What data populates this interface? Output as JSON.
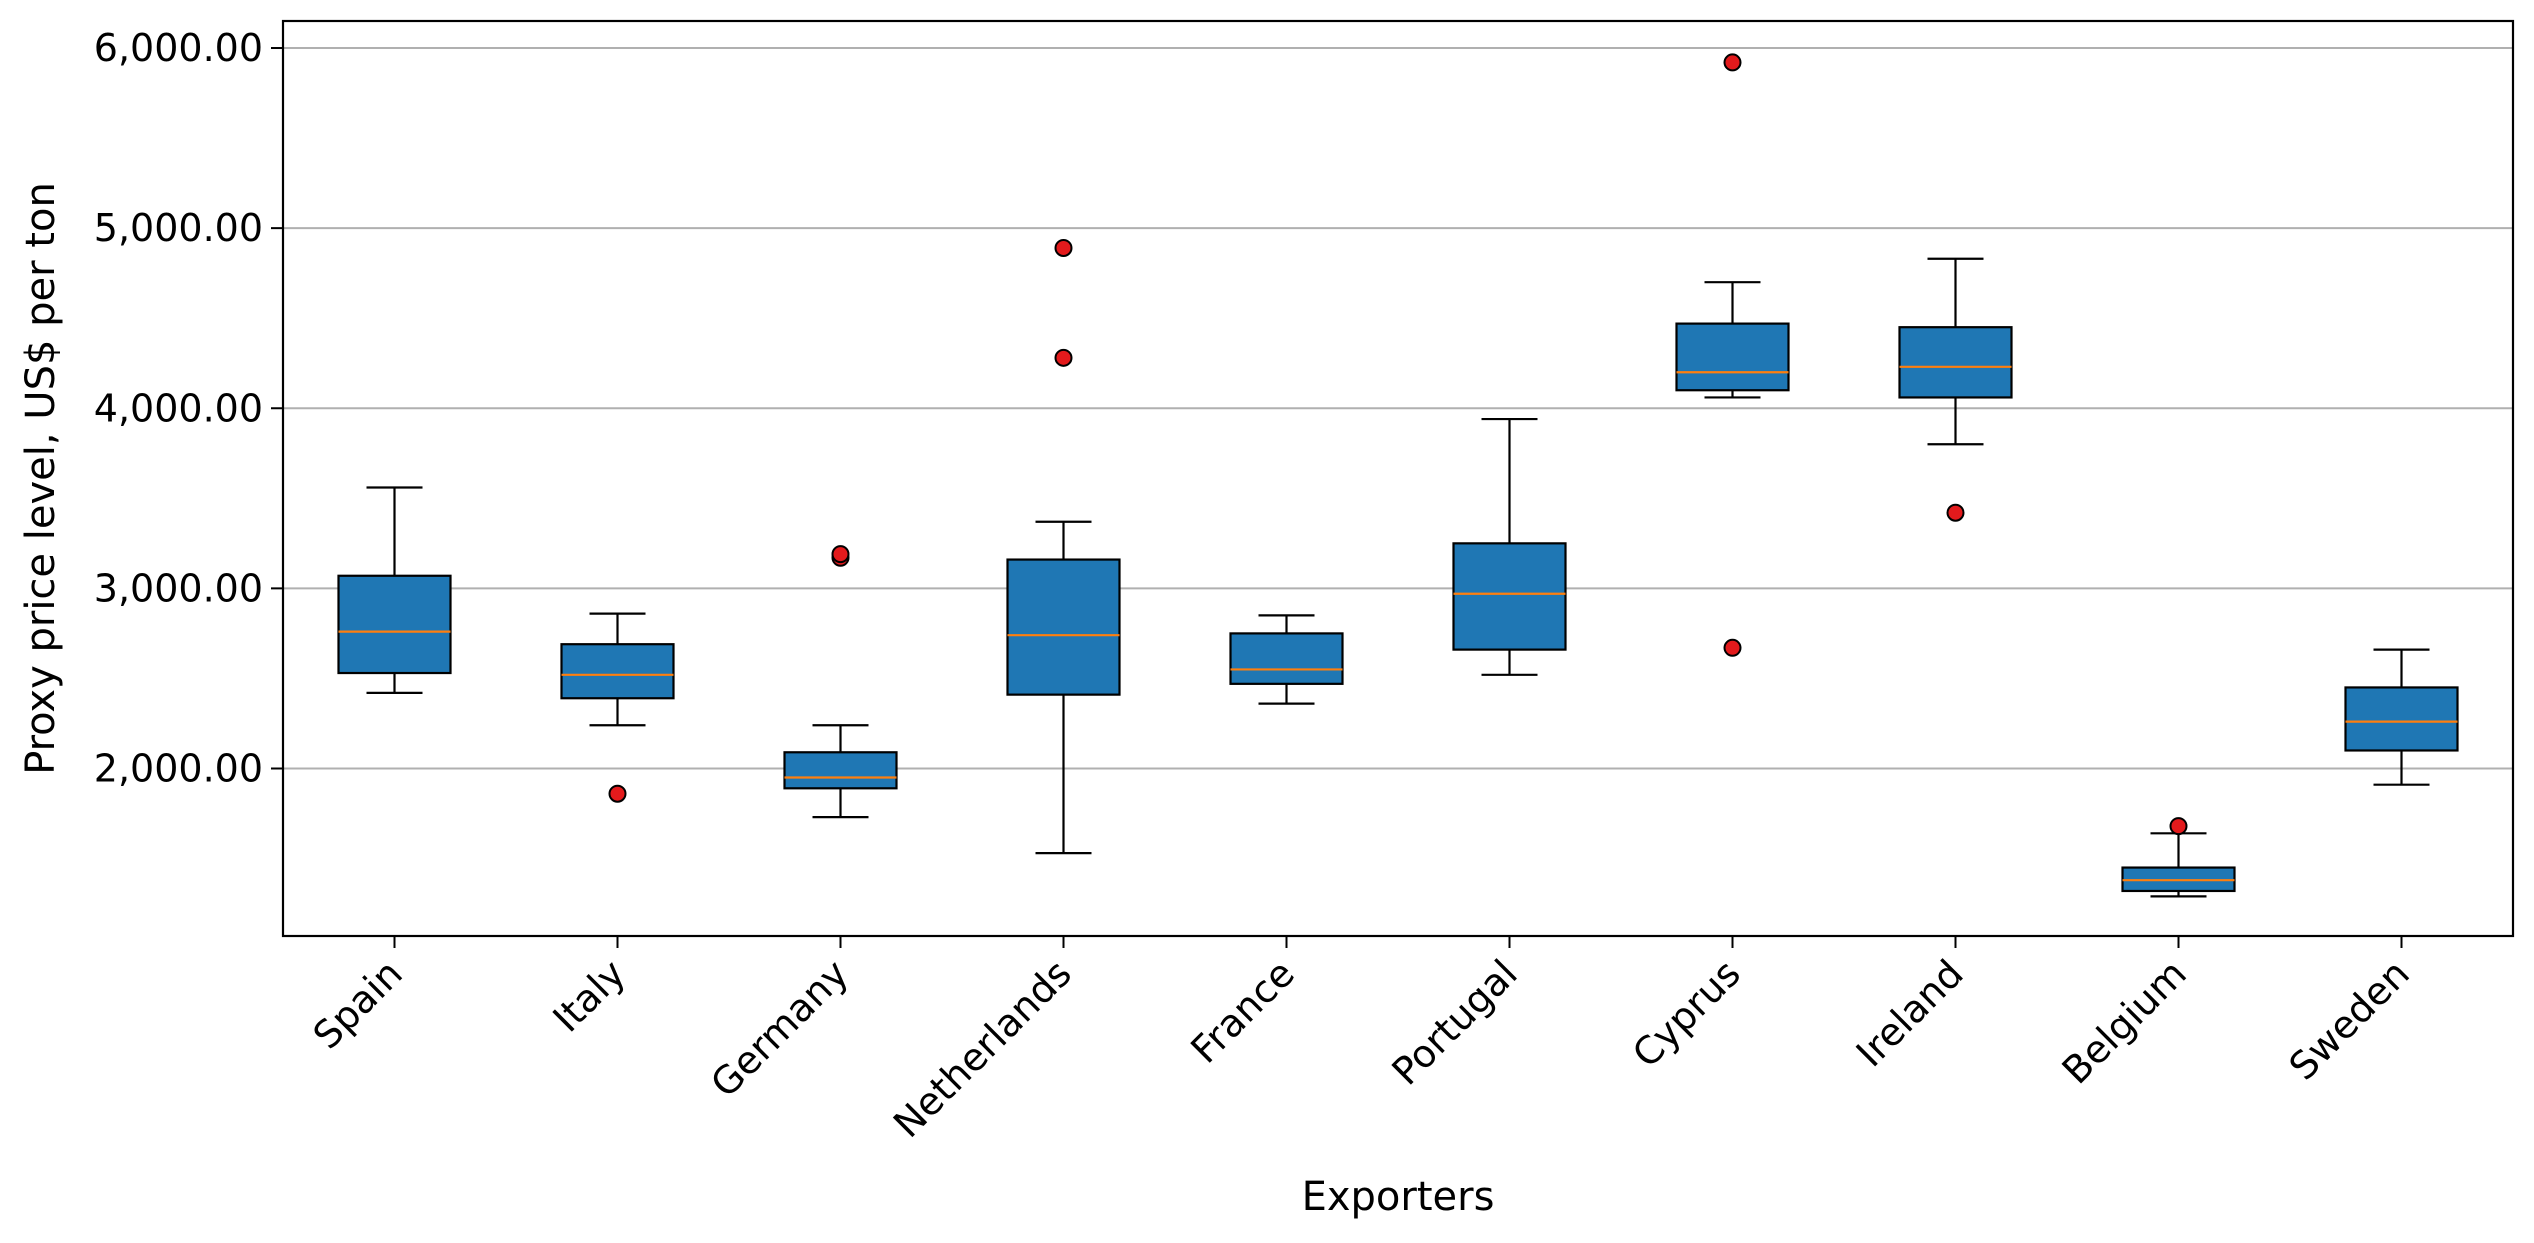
{
  "chart_data": {
    "type": "box",
    "xlabel": "Exporters",
    "ylabel": "Proxy price level, US$ per ton",
    "ylim": [
      1070,
      6150
    ],
    "yticks": [
      2000,
      3000,
      4000,
      5000,
      6000
    ],
    "ytick_labels": [
      "2,000.00",
      "3,000.00",
      "4,000.00",
      "5,000.00",
      "6,000.00"
    ],
    "grid": "horizontal",
    "colors": {
      "box_fill": "#1f77b4",
      "median": "#ff7f0e",
      "outlier": "#e31a1c",
      "grid": "#b0b0b0"
    },
    "categories": [
      "Spain",
      "Italy",
      "Germany",
      "Netherlands",
      "France",
      "Portugal",
      "Cyprus",
      "Ireland",
      "Belgium",
      "Sweden"
    ],
    "boxes": [
      {
        "name": "Spain",
        "whislo": 2420,
        "q1": 2530,
        "med": 2760,
        "q3": 3070,
        "whishi": 3560,
        "fliers": []
      },
      {
        "name": "Italy",
        "whislo": 2240,
        "q1": 2390,
        "med": 2520,
        "q3": 2690,
        "whishi": 2860,
        "fliers": [
          1860
        ]
      },
      {
        "name": "Germany",
        "whislo": 1730,
        "q1": 1890,
        "med": 1950,
        "q3": 2090,
        "whishi": 2240,
        "fliers": [
          3170,
          3190
        ]
      },
      {
        "name": "Netherlands",
        "whislo": 1530,
        "q1": 2410,
        "med": 2740,
        "q3": 3160,
        "whishi": 3370,
        "fliers": [
          4280,
          4890
        ]
      },
      {
        "name": "France",
        "whislo": 2360,
        "q1": 2470,
        "med": 2550,
        "q3": 2750,
        "whishi": 2850,
        "fliers": []
      },
      {
        "name": "Portugal",
        "whislo": 2520,
        "q1": 2660,
        "med": 2970,
        "q3": 3250,
        "whishi": 3940,
        "fliers": []
      },
      {
        "name": "Cyprus",
        "whislo": 4060,
        "q1": 4100,
        "med": 4200,
        "q3": 4470,
        "whishi": 4700,
        "fliers": [
          2670,
          5920
        ]
      },
      {
        "name": "Ireland",
        "whislo": 3800,
        "q1": 4060,
        "med": 4230,
        "q3": 4450,
        "whishi": 4830,
        "fliers": [
          3420
        ]
      },
      {
        "name": "Belgium",
        "whislo": 1290,
        "q1": 1320,
        "med": 1380,
        "q3": 1450,
        "whishi": 1640,
        "fliers": [
          1680
        ]
      },
      {
        "name": "Sweden",
        "whislo": 1910,
        "q1": 2100,
        "med": 2260,
        "q3": 2450,
        "whishi": 2660,
        "fliers": []
      }
    ]
  }
}
